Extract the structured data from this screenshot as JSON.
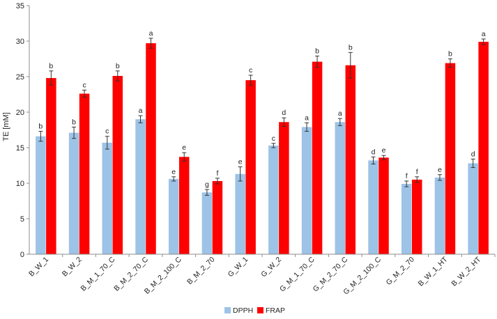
{
  "chart_data": {
    "type": "bar",
    "ylabel": "TE [mM]",
    "ylim": [
      0,
      35
    ],
    "yticks": [
      0,
      5,
      10,
      15,
      20,
      25,
      30,
      35
    ],
    "grid": false,
    "legend_position": "bottom",
    "categories": [
      "B_W_1",
      "B_W_2",
      "B_M_1_70_C",
      "B_M_2_70_C",
      "B_M_2_100_C",
      "B_M_2_70",
      "G_W_1",
      "G_W_2",
      "G_M_1_70_C",
      "G_M_2_70_C",
      "G_M_2_100_C",
      "G_M_2_70",
      "B_W_1_HT",
      "B_W_2_HT"
    ],
    "series": [
      {
        "name": "DPPH",
        "color": "#9dc3e6",
        "values": [
          16.6,
          17.1,
          15.7,
          19.0,
          10.6,
          8.7,
          11.3,
          15.3,
          17.9,
          18.6,
          13.2,
          9.9,
          10.8,
          12.8
        ],
        "errors": [
          0.7,
          0.8,
          0.9,
          0.5,
          0.3,
          0.4,
          1.0,
          0.3,
          0.6,
          0.5,
          0.5,
          0.4,
          0.4,
          0.6
        ],
        "letters": [
          "b",
          "b",
          "c",
          "a",
          "e",
          "g",
          "e",
          "c",
          "a",
          "a",
          "d",
          "f",
          "e",
          "d"
        ]
      },
      {
        "name": "FRAP",
        "color": "#ff0000",
        "values": [
          24.8,
          22.6,
          25.1,
          29.7,
          13.7,
          10.3,
          24.5,
          18.6,
          27.1,
          26.6,
          13.6,
          10.5,
          26.9,
          29.9
        ],
        "errors": [
          1.0,
          0.5,
          0.7,
          0.7,
          0.6,
          0.4,
          0.7,
          0.6,
          0.8,
          1.8,
          0.3,
          0.4,
          0.6,
          0.4
        ],
        "letters": [
          "b",
          "c",
          "b",
          "a",
          "e",
          "f",
          "c",
          "d",
          "b",
          "b",
          "e",
          "f",
          "b",
          "a"
        ]
      }
    ]
  }
}
